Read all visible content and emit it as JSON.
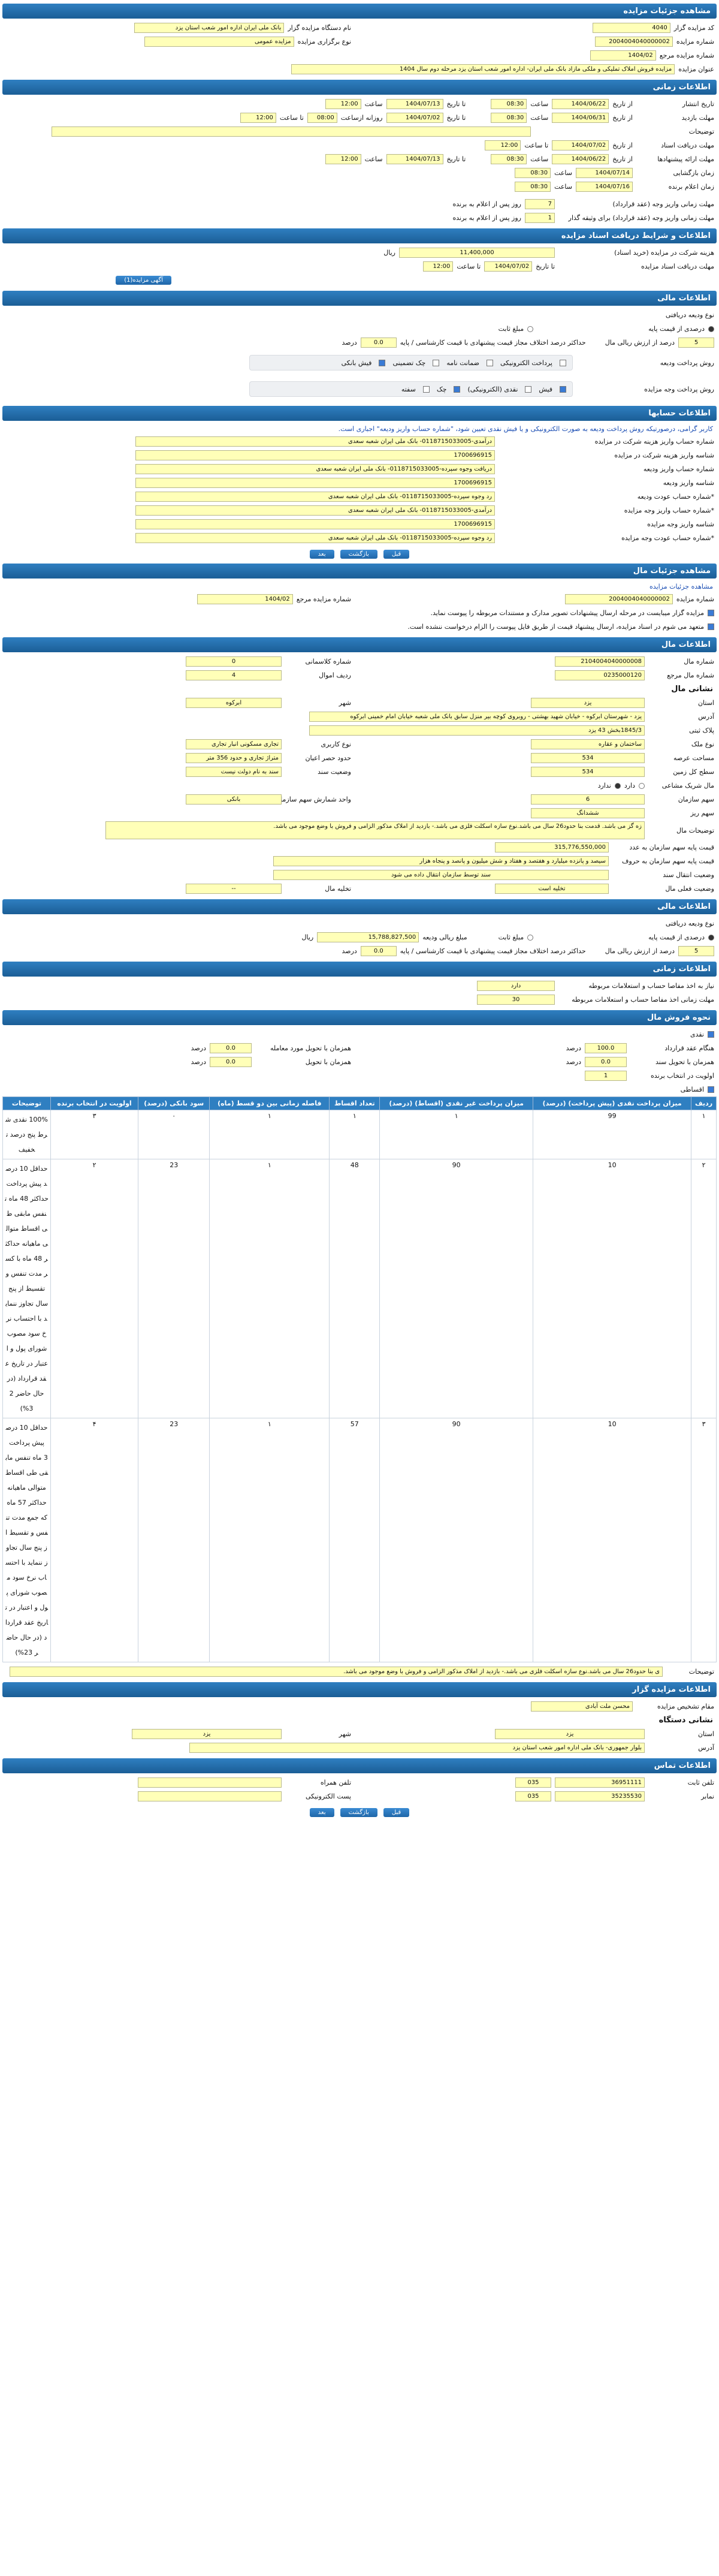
{
  "s1": {
    "title": "مشاهده جزئیات مزایده",
    "code_l": "کد مزایده گزار",
    "code": "4040",
    "org_l": "نام دستگاه مزایده گزار",
    "org": "بانک ملی ایران اداره امور شعب استان یزد",
    "num_l": "شماره مزایده",
    "num": "2004004040000002",
    "type_l": "نوع برگزاری مزایده",
    "type": "مزایده عمومی",
    "ref_l": "شماره مزایده مرجع",
    "ref": "1404/02",
    "title_l": "عنوان مزایده",
    "title_v": "مزایده فروش املاک تملیکی و ملکی مازاد بانک ملی ایران- اداره امور شعب استان یزد مرحله دوم سال 1404"
  },
  "s2": {
    "title": "اطلاعات زمانی",
    "pub_l": "تاریخ انتشار",
    "from_l": "از تاریخ",
    "to_l": "تا تاریخ",
    "time_l": "ساعت",
    "pub_from": "1404/06/22",
    "pub_ft": "08:30",
    "pub_to": "1404/07/13",
    "pub_tt": "12:00",
    "visit_l": "مهلت بازدید",
    "visit_from": "1404/06/31",
    "visit_ft": "08:30",
    "visit_to": "1404/07/02",
    "visit_tt": "12:00",
    "daily_l": "روزانه ازساعت",
    "daily_from": "08:00",
    "daily_till": "تا ساعت",
    "notes_l": "توضیحات",
    "doc_l": "مهلت دریافت اسناد",
    "doc_from": "1404/07/02",
    "doc_to_l": "تا ساعت",
    "doc_to": "12:00",
    "offer_l": "مهلت ارائه پیشنهادها",
    "offer_from": "1404/06/22",
    "offer_ft": "08:30",
    "offer_to": "1404/07/13",
    "offer_tt": "12:00",
    "open_l": "زمان بازگشایی",
    "open_d": "1404/07/14",
    "open_t": "08:30",
    "winner_l": "زمان اعلام برنده",
    "winner_d": "1404/07/16",
    "winner_t": "08:30",
    "dep_l": "مهلت زمانی واریز وجه (عقد قرارداد)",
    "dep_v": "7",
    "dep_s": "روز پس از اعلام به برنده",
    "dep2_l": "مهلت زمانی واریز وجه (عقد قرارداد) برای وثیقه گذار",
    "dep2_v": "1",
    "dep2_s": "روز پس از اعلام به برنده"
  },
  "s3": {
    "title": "اطلاعات و شرایط دریافت اسناد مزایده",
    "fee_l": "هزینه شرکت در مزایده (خرید اسناد)",
    "fee": "11,400,000",
    "fee_u": "ریال",
    "dl_l": "مهلت دریافت اسناد مزایده",
    "dl_to": "تا تاریخ",
    "dl_d": "1404/07/02",
    "dl_t": "تا ساعت",
    "dl_tv": "12:00",
    "btn": "آگهی مزایده(1)"
  },
  "s4": {
    "title": "اطلاعات مالی",
    "dep_type": "نوع ودیعه دریافتی",
    "opt1": "درصدی از قیمت پایه",
    "opt2": "مبلغ ثابت",
    "pct": "5",
    "pct_l": "درصد از ارزش ریالی مال",
    "max_l": "حداکثر درصد اختلاف مجاز قیمت پیشنهادی با قیمت کارشناسی / پایه",
    "max": "0.0",
    "max_u": "درصد",
    "pay_l": "روش پرداخت ودیعه",
    "p1": "پرداخت الکترونیکی",
    "p2": "ضمانت نامه",
    "p3": "چک تضمینی",
    "p4": "فیش بانکی",
    "price_l": "روش پرداخت وجه مزایده",
    "q1": "فیش",
    "q2": "نقدی (الکترونیکی)",
    "q3": "چک",
    "q4": "سفته"
  },
  "s5": {
    "title": "اطلاعات حسابها",
    "notice": "کاربر گرامی، درصورتیکه روش پرداخت ودیعه به صورت الکترونیکی و یا فیش نقدی تعیین شود، \"شماره حساب واریز ودیعه\" اجباری است.",
    "rows": [
      {
        "l": "شماره حساب واریز هزینه شرکت در مزایده",
        "v": "درآمدی-0118715033005- بانک ملی ایران شعبه سعدی"
      },
      {
        "l": "شناسه واریز هزینه شرکت در مزایده",
        "v": "1700696915"
      },
      {
        "l": "شماره حساب واریز ودیعه",
        "v": "دریافت وجوه سپرده-0118715033005- بانک ملی ایران شعبه سعدی"
      },
      {
        "l": "شناسه واریز ودیعه",
        "v": "1700696915"
      },
      {
        "l": "*شماره حساب عودت ودیعه",
        "v": "رد وجوه سپرده-0118715033005- بانک ملی ایران شعبه سعدی"
      },
      {
        "l": "*شماره حساب واریز وجه مزایده",
        "v": "درآمدی-0118715033005- بانک ملی ایران شعبه سعدی"
      },
      {
        "l": "شناسه واریز وجه مزایده",
        "v": "1700696915"
      },
      {
        "l": "*شماره حساب عودت وجه مزایده",
        "v": "رد وجوه سپرده-0118715033005- بانک ملی ایران شعبه سعدی"
      }
    ],
    "b1": "قبل",
    "b2": "بازگشت",
    "b3": "بعد"
  },
  "s6": {
    "title": "مشاهده جزئیات مال",
    "link": "مشاهده جزئیات مزایده",
    "ref_l": "شماره مزایده مرجع",
    "ref": "1404/02",
    "num_l": "شماره مزایده",
    "num": "2004004040000002",
    "c1": "مزایده گزار میبایست در مرحله ارسال پیشنهادات تصویر مدارک و مستندات مربوطه را پیوست نماید.",
    "c2": "متعهد می شوم در اسناد مزایده، ارسال پیشنهاد قیمت از طریق فایل پیوست را الزام درخواست ننشده است."
  },
  "s7": {
    "title": "اطلاعات مال",
    "pnum_l": "شماره مال",
    "pnum": "2104004040000008",
    "cls_l": "شماره کلاسمانی",
    "cls": "0",
    "pref_l": "شماره مال مرجع",
    "pref": "0235000120",
    "row_l": "ردیف اموال",
    "row": "4",
    "addr_t": "نشانی مال",
    "prov_l": "استان",
    "prov": "یزد",
    "city_l": "شهر",
    "city": "ابرکوه",
    "addr_l": "آدرس",
    "addr": "یزد - شهرستان ابرکوه - خیابان شهید بهشتی - روبروی کوچه بیر منزل سابق بانک ملی شعبه خیابان امام خمینی ابرکوه",
    "plak_l": "پلاک ثبتی",
    "plak": "1845/3بخش 43 یزد",
    "use_l": "نوع کاربری",
    "use": "تجاری مسکونی انبار تجاری",
    "kind_l": "نوع ملک",
    "kind": "ساختمان و عقاره",
    "bound_l": "حدود حصر اعیان",
    "bound": "متراژ تجاری و حدود 356 متر",
    "area_l": "مساحت عرصه",
    "area": "534",
    "status_l": "وضعیت سند",
    "status": "سند به نام دولت نیست",
    "land_l": "سطح کل زمین",
    "land": "534",
    "share_l": "مال شریک مشاعی",
    "yes": "دارد",
    "no": "ندارد",
    "org_l": "واحد شمارش سهم سازمان",
    "org": "بانکی",
    "sh_l": "سهم سازمان",
    "sh": "6",
    "sh2_l": "سهم ریز",
    "sh2": "ششدانگ",
    "desc_l": "توضیحات مال",
    "desc": "زه گز می باشد. قدمت بنا حدود26 سال می باشد.نوع سازه اسکلت فلزی می باشد.- بازدید از املاک مذکور الزامی و فروش با وضع موجود می باشد.",
    "pb_l": "قیمت پایه سهم سازمان به عدد",
    "pb": "315,776,550,000",
    "pw_l": "قیمت پایه سهم سازمان به حروف",
    "pw": "سیصد و پانزده میلیارد و هفتصد و هفتاد و شش میلیون و پانصد و پنجاه هزار",
    "ns_l": "وضعیت انتقال سند",
    "ns": "سند توسط سازمان انتقال داده می شود",
    "occ_l": "وضعیت فعلی مال",
    "occ": "تخلیه است",
    "ev_l": "تخلیه مال",
    "ev": "--"
  },
  "s8": {
    "title": "اطلاعات مالی",
    "t_l": "نوع ودیعه دریافتی",
    "o1": "درصدی از قیمت پایه",
    "o2": "مبلغ ثابت",
    "v_l": "مبلغ ریالی ودیعه",
    "v": "15,788,827,500",
    "u": "ریال",
    "p": "5",
    "p_l": "درصد از ارزش ریالی مال",
    "m_l": "حداکثر درصد اختلاف مجاز قیمت پیشنهادی با قیمت کارشناسی / پایه",
    "m": "0.0",
    "m_u": "درصد"
  },
  "s9": {
    "title": "اطلاعات زمانی",
    "a_l": "نیاز به اخذ مفاصا حساب و استعلامات مربوطه",
    "a": "دارد",
    "b_l": "مهلت زمانی اخذ مفاصا حساب و استعلامات مربوطه",
    "b": "30"
  },
  "s10": {
    "title": "نحوه فروش مال",
    "cash": "نقدی",
    "c1_l": "هنگام عقد قرارداد",
    "c1": "100.0",
    "c1_u": "درصد",
    "c1r_l": "همزمان با تحویل مورد معامله",
    "c1r": "0.0",
    "c2_l": "همزمان با تحویل سند",
    "c2": "0.0",
    "c2r_l": "همزمان با تحویل",
    "c2r": "0.0",
    "pri_l": "اولویت در انتخاب برنده",
    "pri": "1",
    "install": "اقساطی",
    "cols": [
      "ردیف",
      "میزان پرداخت نقدی (پیش پرداخت) (درصد)",
      "میزان پرداخت غیر نقدی (اقساط) (درصد)",
      "تعداد اقساط",
      "فاصله زمانی بین دو قسط (ماه)",
      "سود بانکی (درصد)",
      "اولویت در انتخاب برنده",
      "توضیحات"
    ],
    "rows": [
      {
        "n": "۱",
        "a": "99",
        "b": "۱",
        "c": "۱",
        "d": "۱",
        "e": "۰",
        "f": "۳",
        "g": "100% نقدی شرط پنج درصد تخفیف"
      },
      {
        "n": "۲",
        "a": "10",
        "b": "90",
        "c": "48",
        "d": "۱",
        "e": "23",
        "f": "۲",
        "g": "حداقل 10 درصد پیش پرداخت حداکثر 48 ماه تنفس مابقی طی اقساط متوالی ماهیانه حداکثر 48 ماه با کسر مدت تنفس و تقسیط از پنج سال تجاوز ننماید با احتساب نرخ سود مصوب شورای پول و اعتبار در تاریخ عقد قرارداد (در حال حاضر 23%)"
      },
      {
        "n": "۳",
        "a": "10",
        "b": "90",
        "c": "57",
        "d": "۱",
        "e": "23",
        "f": "۴",
        "g": "حداقل 10 درصد پیش پرداخت 3 ماه تنفس مابقی طی اقساط متوالی ماهیانه حداکثر 57 ماه که جمع مدت تنفس و تقسیط از پنج سال تجاوز ننماید با احتساب نرخ سود مصوب شورای پول و اعتبار در تاریخ عقد قرارداد (در حال حاضر 23%)"
      }
    ],
    "note_l": "توضیحات",
    "note": "ی بنا حدود26 سال می باشد.نوع سازه اسکلت فلزی می باشد.- بازدید از املاک مذکور الزامی و فروش با وضع موجود می باشد."
  },
  "s11": {
    "title": "اطلاعات مزایده گزار",
    "res_l": "مقام تشخیص مزایده",
    "res": "محسن ملت آبادی",
    "addr_t": "نشانی دستگاه",
    "prov_l": "استان",
    "prov": "یزد",
    "city_l": "شهر",
    "city": "یزد",
    "addr_l": "آدرس",
    "addr": "بلوار جمهوری- بانک ملی اداره امور شعب استان یزد"
  },
  "s12": {
    "title": "اطلاعات تماس",
    "tel_l": "تلفن ثابت",
    "tel": "36951111",
    "code": "035",
    "mob_l": "تلفن همراه",
    "fax_l": "نمابر",
    "fax": "35235530",
    "fcode": "035",
    "mail_l": "پست الکترونیکی",
    "b1": "قبل",
    "b2": "بازگشت",
    "b3": "بعد"
  }
}
